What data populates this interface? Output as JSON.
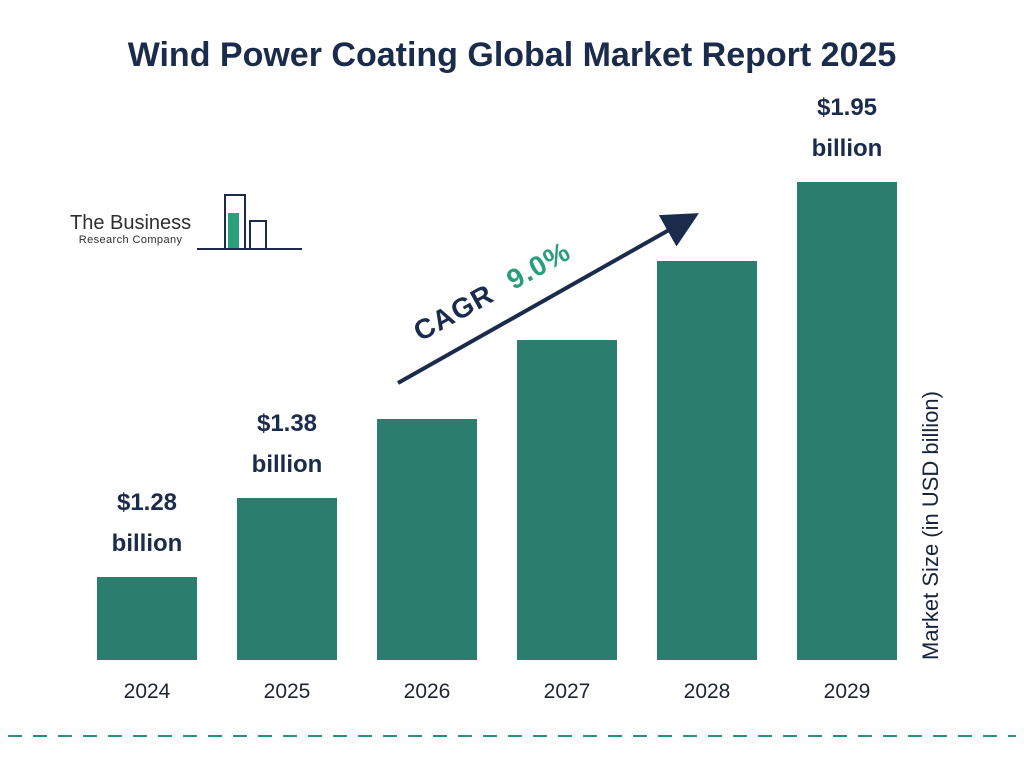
{
  "title": "Wind Power Coating Global Market Report 2025",
  "logo": {
    "line1": "The Business",
    "line2": "Research Company"
  },
  "cagr": {
    "label": "CAGR",
    "value": "9.0%"
  },
  "y_axis_label": "Market Size (in USD billion)",
  "chart_data": {
    "type": "bar",
    "title": "Wind Power Coating Global Market Report 2025",
    "categories": [
      "2024",
      "2025",
      "2026",
      "2027",
      "2028",
      "2029"
    ],
    "values": [
      1.28,
      1.38,
      1.5,
      1.64,
      1.79,
      1.95
    ],
    "bar_labels": [
      "$1.28\nbillion",
      "$1.38\nbillion",
      "",
      "",
      "",
      "$1.95\nbillion"
    ],
    "xlabel": "",
    "ylabel": "Market Size (in USD billion)",
    "ylim": [
      0,
      2.2
    ],
    "grid": false,
    "legend": false,
    "annotation": "CAGR 9.0%",
    "bar_color": "#2b7e6d",
    "colors": {
      "title": "#1b2b4b",
      "bar": "#2b7e6d",
      "cagr_green": "#2a9d7c",
      "arrow": "#1b2b4b",
      "divider": "#2a9180"
    }
  }
}
